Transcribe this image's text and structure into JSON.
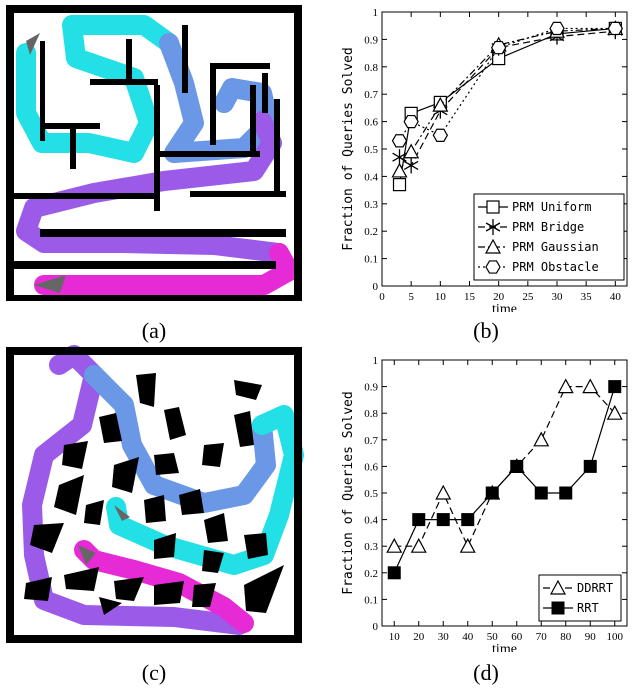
{
  "captions": {
    "a": "(a)",
    "b": "(b)",
    "c": "(c)",
    "d": "(d)"
  },
  "colors": {
    "cyan": "#22e0e6",
    "blue": "#6a98e6",
    "purple": "#9b5be8",
    "magenta": "#e62bd6",
    "wall": "#000000",
    "marker": "#666666"
  },
  "chart_data": [
    {
      "type": "line",
      "panel": "b",
      "xlabel": "time",
      "ylabel": "Fraction of Queries Solved",
      "xlim": [
        0,
        42
      ],
      "ylim": [
        0,
        1
      ],
      "xticks": [
        0,
        5,
        10,
        15,
        20,
        25,
        30,
        35,
        40
      ],
      "yticks": [
        0,
        0.1,
        0.2,
        0.3,
        0.4,
        0.5,
        0.6,
        0.7,
        0.8,
        0.9,
        1
      ],
      "ytick_labels": [
        "0",
        "0.1",
        "0.2",
        "0.3",
        "0.4",
        "0.5",
        "0.6",
        "0.7",
        "0.8",
        "0.9",
        "1"
      ],
      "legend_position": "bottom-right",
      "series": [
        {
          "name": "PRM  Uniform",
          "marker": "square",
          "dash": "solid",
          "x": [
            3,
            5,
            10,
            20,
            30,
            40
          ],
          "y": [
            0.37,
            0.63,
            0.67,
            0.83,
            0.92,
            0.94
          ]
        },
        {
          "name": "PRM  Bridge",
          "marker": "star",
          "dash": "dashed",
          "x": [
            3,
            5,
            10,
            20,
            30,
            40
          ],
          "y": [
            0.47,
            0.44,
            0.64,
            0.87,
            0.91,
            0.93
          ]
        },
        {
          "name": "PRM  Gaussian",
          "marker": "triangle",
          "dash": "dashdot",
          "x": [
            3,
            5,
            10,
            20,
            30,
            40
          ],
          "y": [
            0.42,
            0.49,
            0.66,
            0.88,
            0.93,
            0.94
          ]
        },
        {
          "name": "PRM  Obstacle",
          "marker": "hexagon",
          "dash": "dotted",
          "x": [
            3,
            5,
            10,
            20,
            30,
            40
          ],
          "y": [
            0.53,
            0.6,
            0.55,
            0.87,
            0.94,
            0.94
          ]
        }
      ]
    },
    {
      "type": "line",
      "panel": "d",
      "xlabel": "time",
      "ylabel": "Fraction of Queries Solved",
      "xlim": [
        5,
        105
      ],
      "ylim": [
        0,
        1
      ],
      "xticks": [
        10,
        20,
        30,
        40,
        50,
        60,
        70,
        80,
        90,
        100
      ],
      "yticks": [
        0,
        0.1,
        0.2,
        0.3,
        0.4,
        0.5,
        0.6,
        0.7,
        0.8,
        0.9,
        1
      ],
      "ytick_labels": [
        "0",
        "0.1",
        "0.2",
        "0.3",
        "0.4",
        "0.5",
        "0.6",
        "0.7",
        "0.8",
        "0.9",
        "1"
      ],
      "legend_position": "bottom-right",
      "series": [
        {
          "name": "DDRRT",
          "marker": "triangle",
          "dash": "dashed",
          "x": [
            10,
            20,
            30,
            40,
            50,
            60,
            70,
            80,
            90,
            100
          ],
          "y": [
            0.3,
            0.3,
            0.5,
            0.3,
            0.5,
            0.6,
            0.7,
            0.9,
            0.9,
            0.8
          ]
        },
        {
          "name": "RRT",
          "marker": "filled-square",
          "dash": "solid",
          "x": [
            10,
            20,
            30,
            40,
            50,
            60,
            70,
            80,
            90,
            100
          ],
          "y": [
            0.2,
            0.4,
            0.4,
            0.4,
            0.5,
            0.6,
            0.5,
            0.5,
            0.6,
            0.9
          ]
        }
      ]
    }
  ]
}
